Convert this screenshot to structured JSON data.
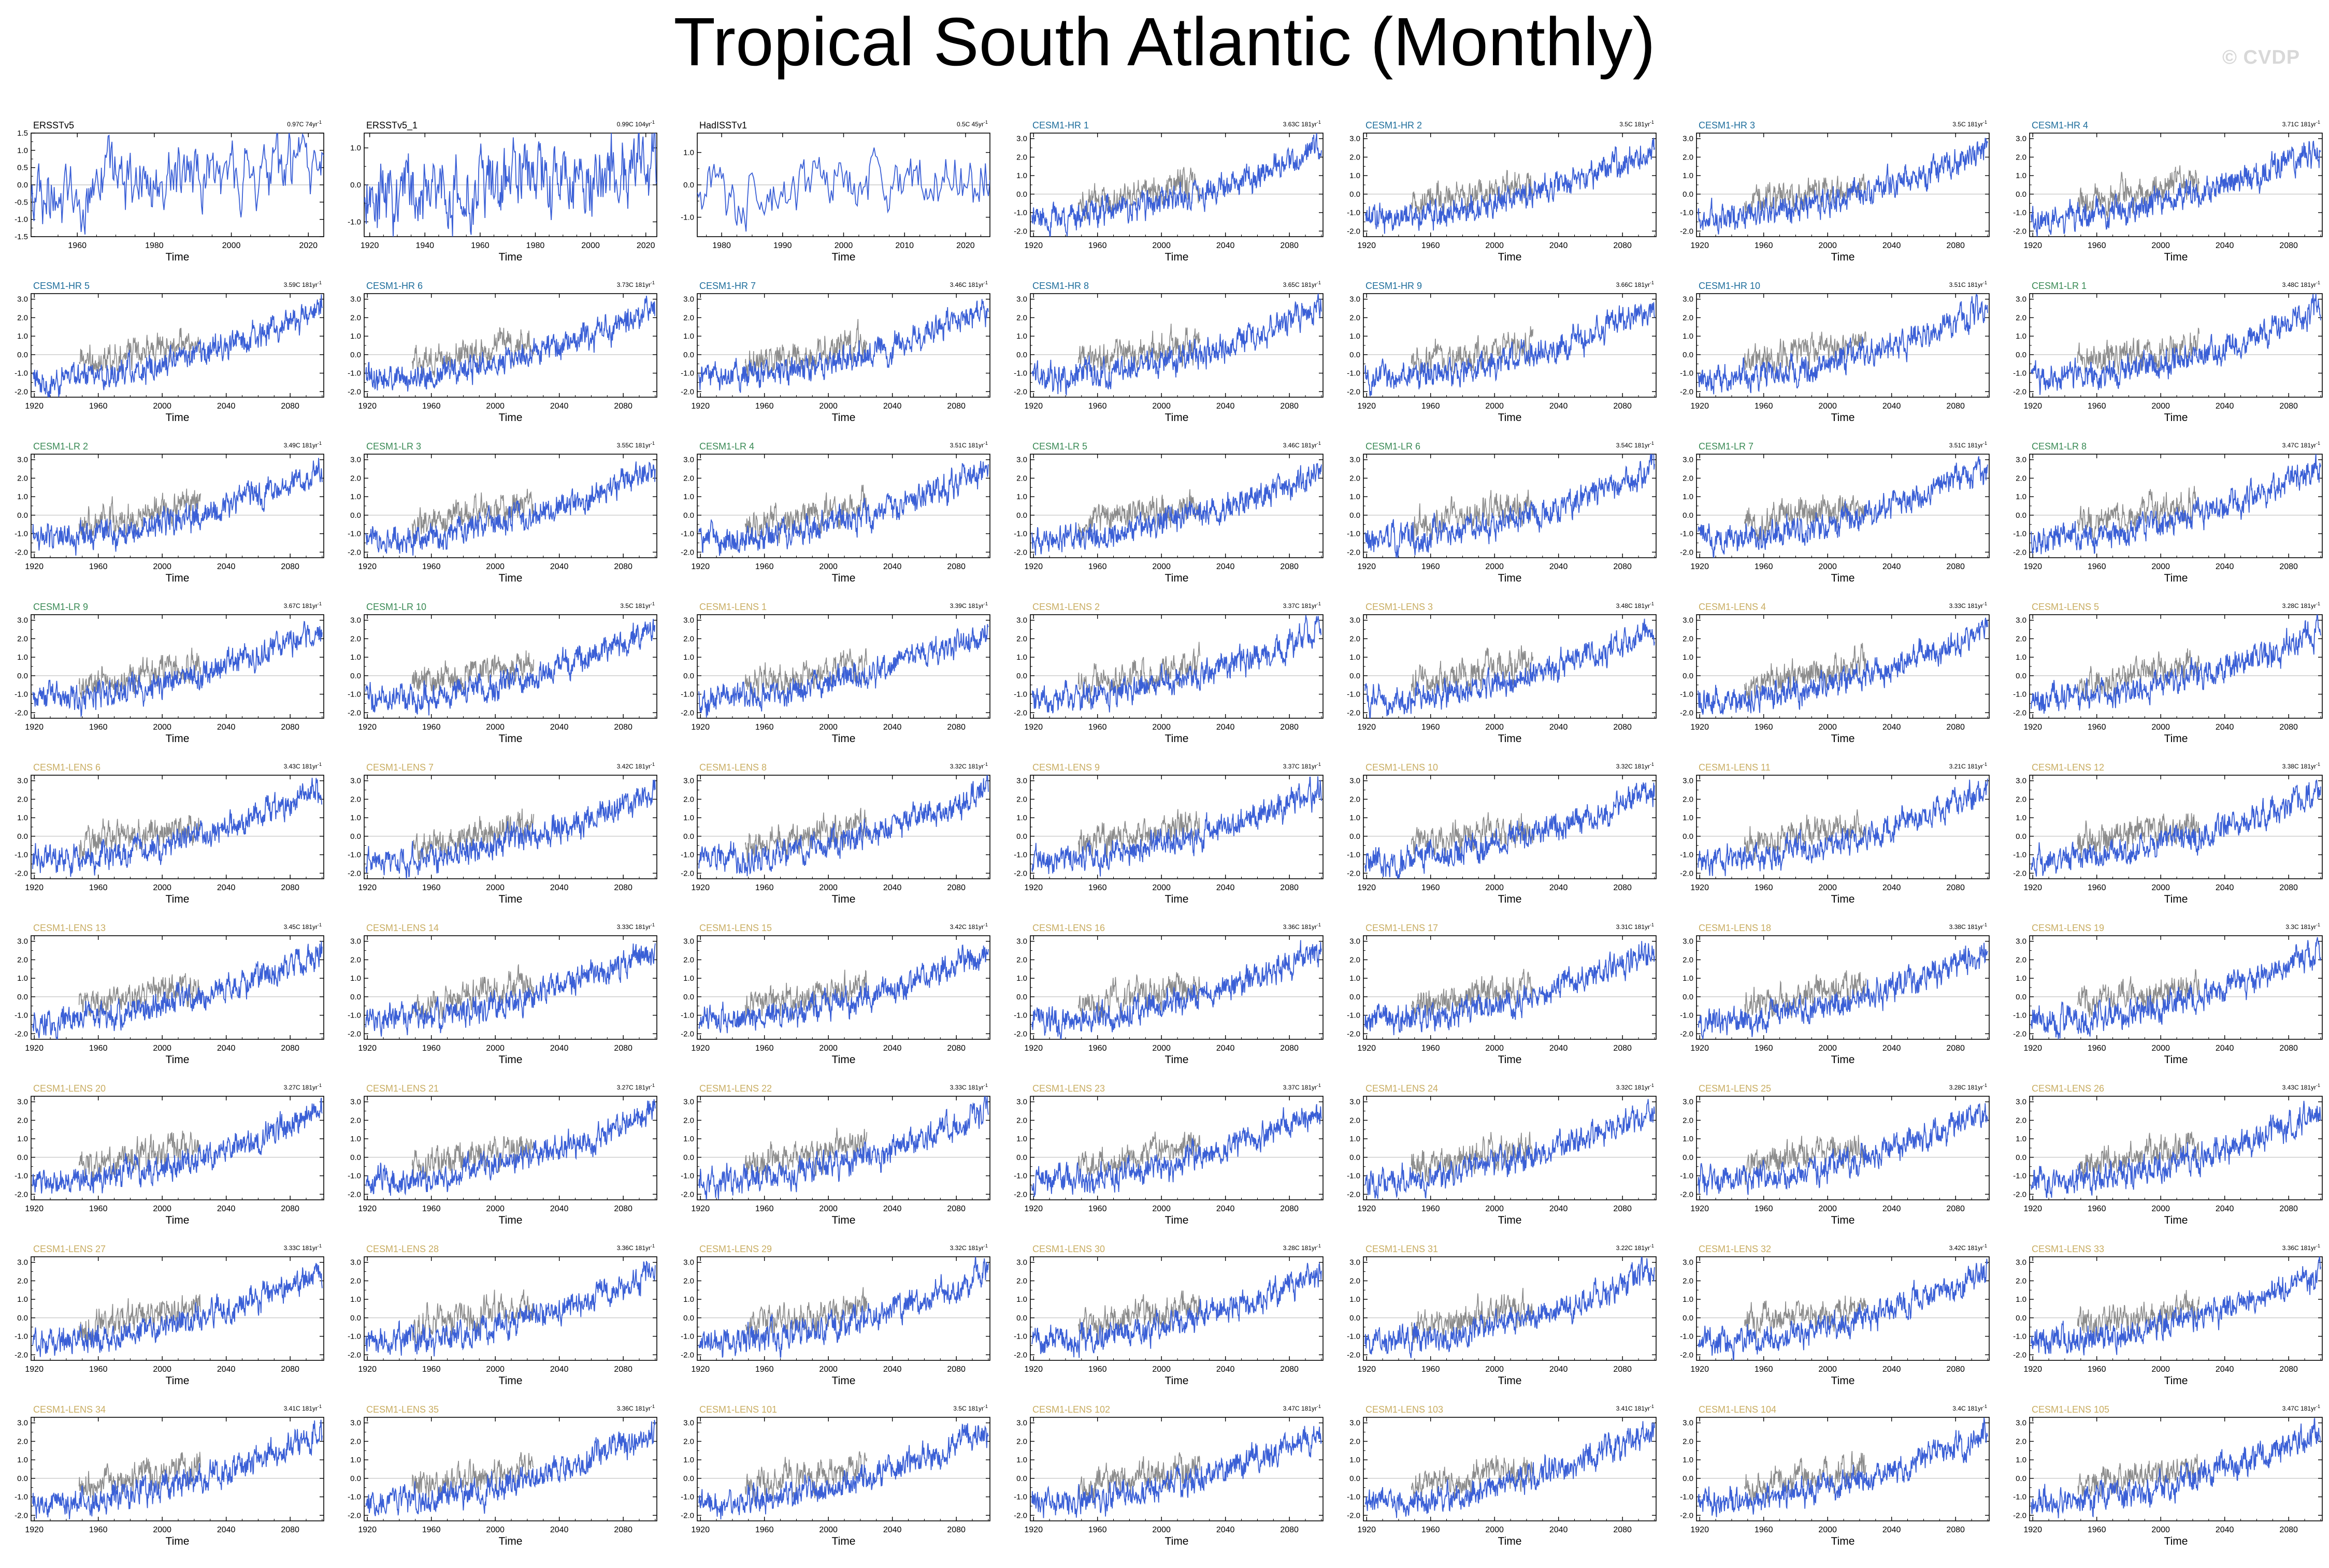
{
  "page": {
    "title": "Tropical South Atlantic (Monthly)",
    "watermark": "© CVDP"
  },
  "colors": {
    "model_line": "#3a5fd6",
    "obs_line": "#8c8c8c",
    "zero_line": "#c8c8c8",
    "obs_label": "#000000",
    "hr_label": "#1f6e9c",
    "lr_label": "#3a8a55",
    "lens_label": "#c9ad62"
  },
  "chart_data": {
    "type": "line",
    "xlabel": "Time",
    "panels": [
      {
        "name": "ERSSTv5",
        "trend": "0.97C 74yr",
        "group": "obs",
        "xlim": [
          1948,
          2024
        ],
        "xticks": [
          1960,
          1980,
          2000,
          2020
        ],
        "ylim": [
          -1.5,
          1.5
        ],
        "yticks": [
          "-1.5",
          "-1.0",
          "-0.5",
          "0.0",
          "0.5",
          "1.0",
          "1.5"
        ],
        "ytick_values": [
          -1.5,
          -1.0,
          -0.5,
          0,
          0.5,
          1.0,
          1.5
        ],
        "start": -0.3,
        "end": 0.6
      },
      {
        "name": "ERSSTv5_1",
        "trend": "0.99C 104yr",
        "group": "obs",
        "xlim": [
          1918,
          2024
        ],
        "xticks": [
          1920,
          1940,
          1960,
          1980,
          2000,
          2020
        ],
        "ylim": [
          -1.4,
          1.4
        ],
        "yticks": [
          "-1.0",
          "0.0",
          "1.0"
        ],
        "ytick_values": [
          -1,
          0,
          1
        ],
        "start": -0.4,
        "end": 0.5
      },
      {
        "name": "HadISSTv1",
        "trend": "0.5C 45yr",
        "group": "obs",
        "xlim": [
          1976,
          2024
        ],
        "xticks": [
          1980,
          1990,
          2000,
          2010,
          2020
        ],
        "ylim": [
          -1.6,
          1.6
        ],
        "yticks": [
          "-1.0",
          "0.0",
          "1.0"
        ],
        "ytick_values": [
          -1,
          0,
          1
        ],
        "start": -0.2,
        "end": 0.3
      },
      {
        "name": "CESM1-HR 1",
        "trend": "3.63C 181yr",
        "group": "hr"
      },
      {
        "name": "CESM1-HR 2",
        "trend": "3.5C 181yr",
        "group": "hr"
      },
      {
        "name": "CESM1-HR 3",
        "trend": "3.5C 181yr",
        "group": "hr"
      },
      {
        "name": "CESM1-HR 4",
        "trend": "3.71C 181yr",
        "group": "hr"
      },
      {
        "name": "CESM1-HR 5",
        "trend": "3.59C 181yr",
        "group": "hr"
      },
      {
        "name": "CESM1-HR 6",
        "trend": "3.73C 181yr",
        "group": "hr"
      },
      {
        "name": "CESM1-HR 7",
        "trend": "3.46C 181yr",
        "group": "hr"
      },
      {
        "name": "CESM1-HR 8",
        "trend": "3.65C 181yr",
        "group": "hr"
      },
      {
        "name": "CESM1-HR 9",
        "trend": "3.66C 181yr",
        "group": "hr"
      },
      {
        "name": "CESM1-HR 10",
        "trend": "3.51C 181yr",
        "group": "hr"
      },
      {
        "name": "CESM1-LR 1",
        "trend": "3.48C 181yr",
        "group": "lr"
      },
      {
        "name": "CESM1-LR 2",
        "trend": "3.49C 181yr",
        "group": "lr"
      },
      {
        "name": "CESM1-LR 3",
        "trend": "3.55C 181yr",
        "group": "lr"
      },
      {
        "name": "CESM1-LR 4",
        "trend": "3.51C 181yr",
        "group": "lr"
      },
      {
        "name": "CESM1-LR 5",
        "trend": "3.46C 181yr",
        "group": "lr"
      },
      {
        "name": "CESM1-LR 6",
        "trend": "3.54C 181yr",
        "group": "lr"
      },
      {
        "name": "CESM1-LR 7",
        "trend": "3.51C 181yr",
        "group": "lr"
      },
      {
        "name": "CESM1-LR 8",
        "trend": "3.47C 181yr",
        "group": "lr"
      },
      {
        "name": "CESM1-LR 9",
        "trend": "3.67C 181yr",
        "group": "lr"
      },
      {
        "name": "CESM1-LR 10",
        "trend": "3.5C 181yr",
        "group": "lr"
      },
      {
        "name": "CESM1-LENS 1",
        "trend": "3.39C 181yr",
        "group": "lens"
      },
      {
        "name": "CESM1-LENS 2",
        "trend": "3.37C 181yr",
        "group": "lens"
      },
      {
        "name": "CESM1-LENS 3",
        "trend": "3.48C 181yr",
        "group": "lens"
      },
      {
        "name": "CESM1-LENS 4",
        "trend": "3.33C 181yr",
        "group": "lens"
      },
      {
        "name": "CESM1-LENS 5",
        "trend": "3.28C 181yr",
        "group": "lens"
      },
      {
        "name": "CESM1-LENS 6",
        "trend": "3.43C 181yr",
        "group": "lens"
      },
      {
        "name": "CESM1-LENS 7",
        "trend": "3.42C 181yr",
        "group": "lens"
      },
      {
        "name": "CESM1-LENS 8",
        "trend": "3.32C 181yr",
        "group": "lens"
      },
      {
        "name": "CESM1-LENS 9",
        "trend": "3.37C 181yr",
        "group": "lens"
      },
      {
        "name": "CESM1-LENS 10",
        "trend": "3.32C 181yr",
        "group": "lens"
      },
      {
        "name": "CESM1-LENS 11",
        "trend": "3.21C 181yr",
        "group": "lens"
      },
      {
        "name": "CESM1-LENS 12",
        "trend": "3.38C 181yr",
        "group": "lens"
      },
      {
        "name": "CESM1-LENS 13",
        "trend": "3.45C 181yr",
        "group": "lens"
      },
      {
        "name": "CESM1-LENS 14",
        "trend": "3.33C 181yr",
        "group": "lens"
      },
      {
        "name": "CESM1-LENS 15",
        "trend": "3.42C 181yr",
        "group": "lens"
      },
      {
        "name": "CESM1-LENS 16",
        "trend": "3.36C 181yr",
        "group": "lens"
      },
      {
        "name": "CESM1-LENS 17",
        "trend": "3.31C 181yr",
        "group": "lens"
      },
      {
        "name": "CESM1-LENS 18",
        "trend": "3.38C 181yr",
        "group": "lens"
      },
      {
        "name": "CESM1-LENS 19",
        "trend": "3.3C 181yr",
        "group": "lens"
      },
      {
        "name": "CESM1-LENS 20",
        "trend": "3.27C 181yr",
        "group": "lens"
      },
      {
        "name": "CESM1-LENS 21",
        "trend": "3.27C 181yr",
        "group": "lens"
      },
      {
        "name": "CESM1-LENS 22",
        "trend": "3.33C 181yr",
        "group": "lens"
      },
      {
        "name": "CESM1-LENS 23",
        "trend": "3.37C 181yr",
        "group": "lens"
      },
      {
        "name": "CESM1-LENS 24",
        "trend": "3.32C 181yr",
        "group": "lens"
      },
      {
        "name": "CESM1-LENS 25",
        "trend": "3.28C 181yr",
        "group": "lens"
      },
      {
        "name": "CESM1-LENS 26",
        "trend": "3.43C 181yr",
        "group": "lens"
      },
      {
        "name": "CESM1-LENS 27",
        "trend": "3.33C 181yr",
        "group": "lens"
      },
      {
        "name": "CESM1-LENS 28",
        "trend": "3.36C 181yr",
        "group": "lens"
      },
      {
        "name": "CESM1-LENS 29",
        "trend": "3.32C 181yr",
        "group": "lens"
      },
      {
        "name": "CESM1-LENS 30",
        "trend": "3.28C 181yr",
        "group": "lens"
      },
      {
        "name": "CESM1-LENS 31",
        "trend": "3.22C 181yr",
        "group": "lens"
      },
      {
        "name": "CESM1-LENS 32",
        "trend": "3.42C 181yr",
        "group": "lens"
      },
      {
        "name": "CESM1-LENS 33",
        "trend": "3.36C 181yr",
        "group": "lens"
      },
      {
        "name": "CESM1-LENS 34",
        "trend": "3.41C 181yr",
        "group": "lens"
      },
      {
        "name": "CESM1-LENS 35",
        "trend": "3.36C 181yr",
        "group": "lens"
      },
      {
        "name": "CESM1-LENS 101",
        "trend": "3.5C 181yr",
        "group": "lens"
      },
      {
        "name": "CESM1-LENS 102",
        "trend": "3.47C 181yr",
        "group": "lens"
      },
      {
        "name": "CESM1-LENS 103",
        "trend": "3.41C 181yr",
        "group": "lens"
      },
      {
        "name": "CESM1-LENS 104",
        "trend": "3.4C 181yr",
        "group": "lens"
      },
      {
        "name": "CESM1-LENS 105",
        "trend": "3.47C 181yr",
        "group": "lens"
      }
    ],
    "model_defaults": {
      "xlim": [
        1918,
        2101
      ],
      "xticks": [
        1920,
        1960,
        2000,
        2040,
        2080
      ],
      "ylim": [
        -2.3,
        3.3
      ],
      "yticks": [
        "-2.0",
        "-1.0",
        "0.0",
        "1.0",
        "2.0",
        "3.0"
      ],
      "ytick_values": [
        -2,
        -1,
        0,
        1,
        2,
        3
      ],
      "obs_overlay_years": [
        1948,
        2024
      ],
      "start": -1.3,
      "end": 2.5
    }
  }
}
